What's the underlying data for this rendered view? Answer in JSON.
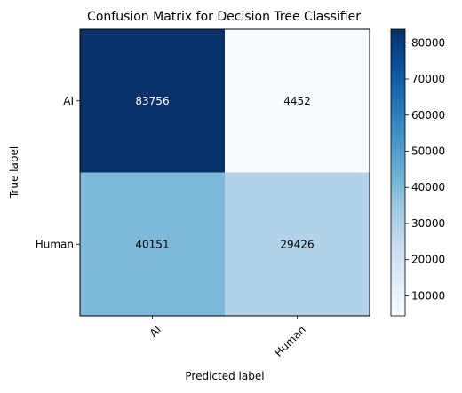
{
  "chart_data": {
    "type": "heatmap",
    "title": "Confusion Matrix for Decision Tree Classifier",
    "xlabel": "Predicted label",
    "ylabel": "True label",
    "x_categories": [
      "AI",
      "Human"
    ],
    "y_categories": [
      "AI",
      "Human"
    ],
    "values": [
      [
        83756,
        4452
      ],
      [
        40151,
        29426
      ]
    ],
    "colormap": "Blues",
    "color_range": [
      4452,
      83756
    ],
    "colorbar_ticks": [
      10000,
      20000,
      30000,
      40000,
      50000,
      60000,
      70000,
      80000
    ],
    "cell_text_colors": [
      [
        "#ffffff",
        "#000000"
      ],
      [
        "#000000",
        "#000000"
      ]
    ],
    "grid": false,
    "x_tick_rotation": 45
  }
}
